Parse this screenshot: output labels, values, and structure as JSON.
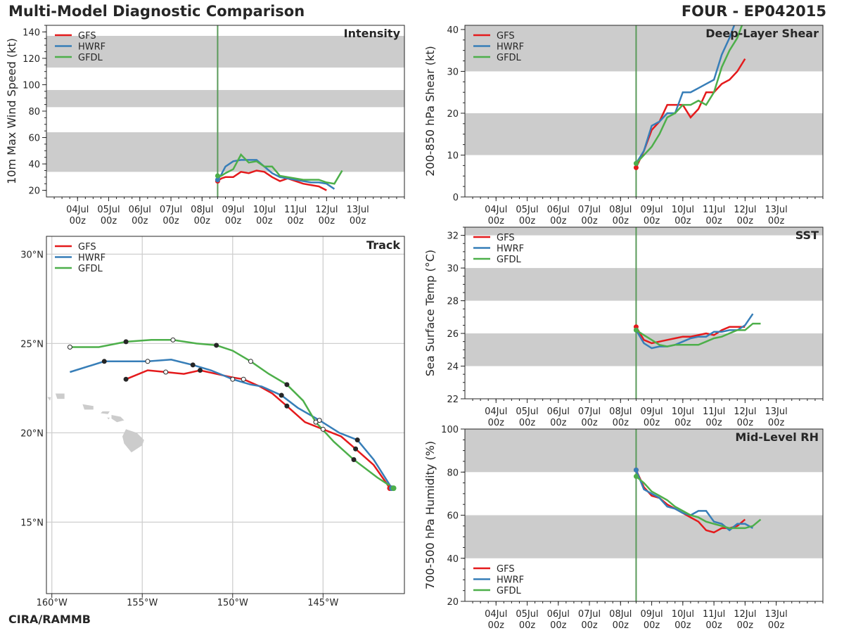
{
  "header": {
    "title": "Multi-Model Diagnostic Comparison",
    "storm": "FOUR - EP042015",
    "credit": "CIRA/RAMMB"
  },
  "legend": [
    {
      "name": "GFS",
      "color": "#e41a1c"
    },
    {
      "name": "HWRF",
      "color": "#377eb8"
    },
    {
      "name": "GFDL",
      "color": "#4daf4a"
    }
  ],
  "init_line_color": "#5a9a5a",
  "shade_color": "#cccccc",
  "time_axis": {
    "range": [
      -1,
      10.5
    ],
    "ticks": [
      0,
      1,
      2,
      3,
      4,
      5,
      6,
      7,
      8,
      9
    ],
    "labels": [
      [
        "04Jul",
        "00z"
      ],
      [
        "05Jul",
        "00z"
      ],
      [
        "06Jul",
        "00z"
      ],
      [
        "07Jul",
        "00z"
      ],
      [
        "08Jul",
        "00z"
      ],
      [
        "09Jul",
        "00z"
      ],
      [
        "10Jul",
        "00z"
      ],
      [
        "11Jul",
        "00z"
      ],
      [
        "12Jul",
        "00z"
      ],
      [
        "13Jul",
        "00z"
      ]
    ],
    "init_time": 4.5
  },
  "chart_data": [
    {
      "id": "intensity",
      "type": "line",
      "title": "Intensity",
      "ylabel": "10m Max Wind Speed (kt)",
      "ylim": [
        15,
        145
      ],
      "yticks": [
        20,
        40,
        60,
        80,
        100,
        120,
        140
      ],
      "bands": [
        [
          34,
          64
        ],
        [
          83,
          96
        ],
        [
          113,
          137
        ]
      ],
      "series": [
        {
          "name": "GFS",
          "x": [
            4.5,
            4.62,
            4.75,
            5.0,
            5.25,
            5.5,
            5.75,
            6.0,
            6.25,
            6.5,
            6.75,
            7.0,
            7.25,
            7.5,
            7.75,
            8.0,
            8.25,
            8.5,
            8.75,
            9.0
          ],
          "y": [
            27,
            29,
            30,
            30,
            34,
            33,
            35,
            34,
            30,
            27,
            29,
            27,
            25,
            24,
            23,
            20,
            null,
            null,
            null,
            null
          ]
        },
        {
          "name": "HWRF",
          "x": [
            4.5,
            4.62,
            4.75,
            5.0,
            5.25,
            5.5,
            5.75,
            6.0,
            6.25,
            6.5,
            6.75,
            7.0,
            7.25,
            7.5,
            7.75,
            8.0,
            8.25
          ],
          "y": [
            28,
            32,
            38,
            42,
            43,
            43,
            43,
            38,
            33,
            30,
            29,
            28,
            27,
            26,
            26,
            25,
            21
          ]
        },
        {
          "name": "GFDL",
          "x": [
            4.5,
            4.62,
            4.75,
            5.0,
            5.25,
            5.5,
            5.75,
            6.0,
            6.25,
            6.5,
            6.75,
            7.0,
            7.25,
            7.5,
            7.75,
            8.0,
            8.25,
            8.5
          ],
          "y": [
            31,
            31,
            33,
            36,
            47,
            41,
            42,
            38,
            38,
            31,
            30,
            29,
            28,
            28,
            28,
            26,
            25,
            35
          ]
        }
      ]
    },
    {
      "id": "shear",
      "type": "line",
      "title": "Deep-Layer Shear",
      "ylabel": "200-850 hPa Shear (kt)",
      "ylim": [
        0,
        41
      ],
      "yticks": [
        0,
        10,
        20,
        30,
        40
      ],
      "bands": [
        [
          10,
          20
        ],
        [
          30,
          41
        ]
      ],
      "series": [
        {
          "name": "GFS",
          "x": [
            4.5,
            4.75,
            5.0,
            5.25,
            5.5,
            5.75,
            6.0,
            6.25,
            6.5,
            6.75,
            7.0,
            7.25,
            7.5,
            7.75,
            8.0
          ],
          "y": [
            7,
            11,
            16,
            18,
            22,
            22,
            22,
            19,
            21,
            25,
            25,
            27,
            28,
            30,
            33
          ]
        },
        {
          "name": "HWRF",
          "x": [
            4.5,
            4.75,
            5.0,
            5.25,
            5.5,
            5.75,
            6.0,
            6.25,
            6.5,
            6.75,
            7.0,
            7.25,
            7.5,
            7.65
          ],
          "y": [
            8,
            11,
            17,
            18,
            20,
            20,
            25,
            25,
            26,
            27,
            28,
            34,
            38,
            41
          ]
        },
        {
          "name": "GFDL",
          "x": [
            4.5,
            4.75,
            5.0,
            5.25,
            5.5,
            5.75,
            6.0,
            6.25,
            6.5,
            6.75,
            7.0,
            7.25,
            7.5,
            7.75,
            7.9
          ],
          "y": [
            8,
            10,
            12,
            15,
            19,
            20,
            22,
            22,
            23,
            22,
            25,
            31,
            35,
            38,
            41
          ]
        }
      ]
    },
    {
      "id": "sst",
      "type": "line",
      "title": "SST",
      "ylabel": "Sea Surface Temp (°C)",
      "ylim": [
        22,
        32.5
      ],
      "yticks": [
        22,
        24,
        26,
        28,
        30,
        32
      ],
      "bands": [
        [
          24,
          26
        ],
        [
          28,
          30
        ],
        [
          32,
          32.5
        ]
      ],
      "series": [
        {
          "name": "GFS",
          "x": [
            4.5,
            4.75,
            5.0,
            5.25,
            5.5,
            5.75,
            6.0,
            6.25,
            6.5,
            6.75,
            7.0,
            7.25,
            7.5,
            7.75,
            8.0
          ],
          "y": [
            26.4,
            25.6,
            25.4,
            25.5,
            25.6,
            25.7,
            25.8,
            25.8,
            25.9,
            26.0,
            25.9,
            26.2,
            26.4,
            26.4,
            26.4
          ]
        },
        {
          "name": "HWRF",
          "x": [
            4.5,
            4.75,
            5.0,
            5.25,
            5.5,
            5.75,
            6.0,
            6.25,
            6.5,
            6.75,
            7.0,
            7.25,
            7.5,
            7.75,
            8.0,
            8.25
          ],
          "y": [
            26.2,
            25.4,
            25.1,
            25.2,
            25.2,
            25.3,
            25.5,
            25.7,
            25.8,
            25.8,
            26.1,
            26.1,
            26.2,
            26.2,
            26.5,
            27.2
          ]
        },
        {
          "name": "GFDL",
          "x": [
            4.5,
            4.75,
            5.0,
            5.25,
            5.5,
            5.75,
            6.0,
            6.25,
            6.5,
            6.75,
            7.0,
            7.25,
            7.5,
            7.75,
            8.0,
            8.25,
            8.5
          ],
          "y": [
            26.2,
            25.9,
            25.6,
            25.3,
            25.2,
            25.3,
            25.3,
            25.3,
            25.3,
            25.5,
            25.7,
            25.8,
            26.0,
            26.2,
            26.2,
            26.6,
            26.6
          ]
        }
      ]
    },
    {
      "id": "rh",
      "type": "line",
      "title": "Mid-Level RH",
      "ylabel": "700-500 hPa Humidity (%)",
      "ylim": [
        20,
        100
      ],
      "yticks": [
        20,
        40,
        60,
        80,
        100
      ],
      "bands": [
        [
          40,
          60
        ],
        [
          80,
          100
        ]
      ],
      "series": [
        {
          "name": "GFS",
          "x": [
            4.5,
            4.75,
            5.0,
            5.25,
            5.5,
            5.75,
            6.0,
            6.25,
            6.5,
            6.75,
            7.0,
            7.25,
            7.5,
            7.75,
            8.0
          ],
          "y": [
            81,
            73,
            69,
            68,
            65,
            63,
            61,
            59,
            57,
            53,
            52,
            54,
            54,
            55,
            58
          ]
        },
        {
          "name": "HWRF",
          "x": [
            4.5,
            4.75,
            5.0,
            5.25,
            5.5,
            5.75,
            6.0,
            6.25,
            6.5,
            6.75,
            7.0,
            7.25,
            7.5,
            7.75,
            8.0,
            8.25
          ],
          "y": [
            81,
            72,
            70,
            68,
            64,
            63,
            61,
            60,
            62,
            62,
            57,
            56,
            53,
            56,
            56,
            54
          ]
        },
        {
          "name": "GFDL",
          "x": [
            4.5,
            4.75,
            5.0,
            5.25,
            5.5,
            5.75,
            6.0,
            6.25,
            6.5,
            6.75,
            7.0,
            7.25,
            7.5,
            7.75,
            8.0,
            8.25,
            8.5
          ],
          "y": [
            78,
            75,
            71,
            69,
            67,
            64,
            62,
            60,
            59,
            57,
            56,
            55,
            54,
            54,
            54,
            55,
            58
          ]
        }
      ]
    },
    {
      "id": "track",
      "type": "scatter",
      "title": "Track",
      "xlim": [
        -160.3,
        -140.5
      ],
      "ylim": [
        11,
        31
      ],
      "xticks": [
        -160,
        -155,
        -150,
        -145
      ],
      "xticklabels": [
        "160°W",
        "155°W",
        "150°W",
        "145°W"
      ],
      "yticks": [
        15,
        20,
        25,
        30
      ],
      "yticklabels": [
        "15°N",
        "20°N",
        "25°N",
        "30°N"
      ],
      "series": [
        {
          "name": "GFS",
          "lon": [
            -141.3,
            -142.2,
            -143.2,
            -144.0,
            -145.0,
            -146.0,
            -147.0,
            -147.8,
            -148.5,
            -149.4,
            -150.0,
            -151.8,
            -152.7,
            -153.7,
            -154.7,
            -155.9
          ],
          "lat": [
            16.9,
            18.2,
            19.1,
            19.8,
            20.2,
            20.6,
            21.5,
            22.2,
            22.6,
            23.0,
            23.1,
            23.5,
            23.3,
            23.4,
            23.5,
            23.0
          ],
          "open": [
            false,
            false,
            false,
            false,
            true,
            false,
            false,
            false,
            false,
            true,
            false,
            false,
            false,
            true,
            false,
            false
          ],
          "dot": [
            false,
            false,
            true,
            false,
            true,
            false,
            true,
            false,
            false,
            true,
            false,
            true,
            false,
            true,
            false,
            true
          ]
        },
        {
          "name": "HWRF",
          "lon": [
            -141.2,
            -142.2,
            -143.1,
            -144.1,
            -145.2,
            -146.4,
            -147.3,
            -148.4,
            -149.0,
            -150.0,
            -151.2,
            -152.2,
            -153.4,
            -154.7,
            -156.0,
            -157.1,
            -159.0
          ],
          "lat": [
            16.9,
            18.5,
            19.6,
            20.0,
            20.7,
            21.4,
            22.1,
            22.6,
            22.7,
            23.0,
            23.5,
            23.8,
            24.1,
            24.0,
            24.0,
            24.0,
            23.4
          ],
          "open": [
            false,
            false,
            false,
            false,
            true,
            false,
            false,
            false,
            false,
            true,
            false,
            false,
            false,
            true,
            false,
            false,
            false
          ],
          "dot": [
            false,
            false,
            true,
            false,
            true,
            false,
            true,
            false,
            false,
            true,
            false,
            true,
            false,
            true,
            false,
            true,
            false
          ]
        },
        {
          "name": "GFDL",
          "lon": [
            -141.1,
            -142.0,
            -143.3,
            -144.4,
            -145.4,
            -146.1,
            -147.0,
            -148.0,
            -149.0,
            -150.0,
            -150.9,
            -152.0,
            -153.3,
            -154.5,
            -155.9,
            -157.4,
            -159.0
          ],
          "lat": [
            16.9,
            17.5,
            18.5,
            19.5,
            20.6,
            21.8,
            22.7,
            23.3,
            24.0,
            24.6,
            24.9,
            25.0,
            25.2,
            25.2,
            25.1,
            24.8,
            24.8
          ],
          "open": [
            false,
            false,
            false,
            false,
            true,
            false,
            false,
            false,
            true,
            false,
            false,
            false,
            true,
            false,
            false,
            false,
            true
          ],
          "dot": [
            false,
            false,
            true,
            false,
            true,
            false,
            true,
            false,
            true,
            false,
            true,
            false,
            true,
            false,
            true,
            false,
            true
          ]
        }
      ]
    }
  ]
}
